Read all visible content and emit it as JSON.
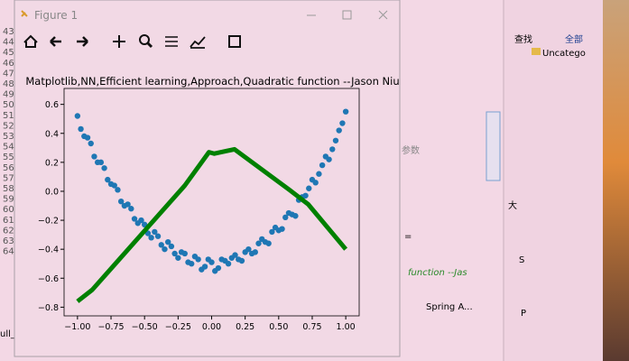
{
  "window": {
    "title": "Figure 1"
  },
  "editor": {
    "line_numbers": [
      "43",
      "44",
      "45",
      "46",
      "47",
      "48",
      "49",
      "50",
      "51",
      "52",
      "53",
      "54",
      "55",
      "56",
      "57",
      "58",
      "59",
      "60",
      "61",
      "62",
      "63",
      "64"
    ],
    "fragments": [
      "参数",
      "=",
      "function --Jas",
      "ull_"
    ]
  },
  "side_panel": {
    "search": "查找",
    "all": "全部",
    "folder": "Uncatego",
    "spring": "Spring A...",
    "tab1": "大",
    "tab2": "S",
    "tab3": "P"
  },
  "chart_data": {
    "type": "scatter",
    "title": "Matplotlib,NN,Efficient learning,Approach,Quadratic function --Jason Niu",
    "xlim": [
      -1.1,
      1.1
    ],
    "ylim": [
      -0.86,
      0.71
    ],
    "xticks": [
      -1.0,
      -0.75,
      -0.5,
      -0.25,
      0.0,
      0.25,
      0.5,
      0.75,
      1.0
    ],
    "xtick_labels": [
      "−1.00",
      "−0.75",
      "−0.50",
      "−0.25",
      "0.00",
      "0.25",
      "0.50",
      "0.75",
      "1.00"
    ],
    "yticks": [
      0.6,
      0.4,
      0.2,
      0.0,
      -0.2,
      -0.4,
      -0.6,
      -0.8
    ],
    "ytick_labels": [
      "0.6",
      "0.4",
      "0.2",
      "0.0",
      "−0.2",
      "−0.4",
      "−0.6",
      "−0.8"
    ],
    "series": [
      {
        "type": "scatter",
        "color": "#1f77b4",
        "x": [
          -1,
          -0.975,
          -0.95,
          -0.925,
          -0.9,
          -0.875,
          -0.85,
          -0.825,
          -0.8,
          -0.775,
          -0.75,
          -0.725,
          -0.7,
          -0.675,
          -0.65,
          -0.625,
          -0.6,
          -0.575,
          -0.55,
          -0.525,
          -0.5,
          -0.475,
          -0.45,
          -0.425,
          -0.4,
          -0.375,
          -0.35,
          -0.325,
          -0.3,
          -0.275,
          -0.25,
          -0.225,
          -0.2,
          -0.175,
          -0.15,
          -0.125,
          -0.1,
          -0.075,
          -0.05,
          -0.025,
          0,
          0.025,
          0.05,
          0.075,
          0.1,
          0.125,
          0.15,
          0.175,
          0.2,
          0.225,
          0.25,
          0.275,
          0.3,
          0.325,
          0.35,
          0.375,
          0.4,
          0.425,
          0.45,
          0.475,
          0.5,
          0.525,
          0.55,
          0.575,
          0.6,
          0.625,
          0.65,
          0.675,
          0.7,
          0.725,
          0.75,
          0.775,
          0.8,
          0.825,
          0.85,
          0.875,
          0.9,
          0.925,
          0.95,
          0.975,
          1
        ],
        "y": [
          0.52,
          0.43,
          0.38,
          0.37,
          0.33,
          0.24,
          0.2,
          0.2,
          0.16,
          0.08,
          0.05,
          0.04,
          0.01,
          -0.07,
          -0.1,
          -0.09,
          -0.12,
          -0.19,
          -0.22,
          -0.2,
          -0.23,
          -0.29,
          -0.32,
          -0.28,
          -0.31,
          -0.37,
          -0.4,
          -0.35,
          -0.38,
          -0.43,
          -0.46,
          -0.42,
          -0.43,
          -0.49,
          -0.5,
          -0.45,
          -0.47,
          -0.54,
          -0.52,
          -0.47,
          -0.49,
          -0.55,
          -0.53,
          -0.47,
          -0.48,
          -0.5,
          -0.46,
          -0.44,
          -0.47,
          -0.48,
          -0.42,
          -0.4,
          -0.43,
          -0.42,
          -0.36,
          -0.33,
          -0.35,
          -0.36,
          -0.28,
          -0.25,
          -0.27,
          -0.26,
          -0.18,
          -0.15,
          -0.16,
          -0.17,
          -0.06,
          -0.04,
          -0.03,
          0.02,
          0.08,
          0.06,
          0.12,
          0.18,
          0.24,
          0.22,
          0.29,
          0.35,
          0.42,
          0.47,
          0.55
        ]
      },
      {
        "type": "line",
        "color": "#008000",
        "x": [
          -1.0,
          -0.89,
          -0.2,
          -0.02,
          0.02,
          0.17,
          0.58,
          0.72,
          1.0
        ],
        "y": [
          -0.76,
          -0.68,
          0.04,
          0.27,
          0.26,
          0.29,
          0.01,
          -0.09,
          -0.4
        ]
      }
    ]
  }
}
